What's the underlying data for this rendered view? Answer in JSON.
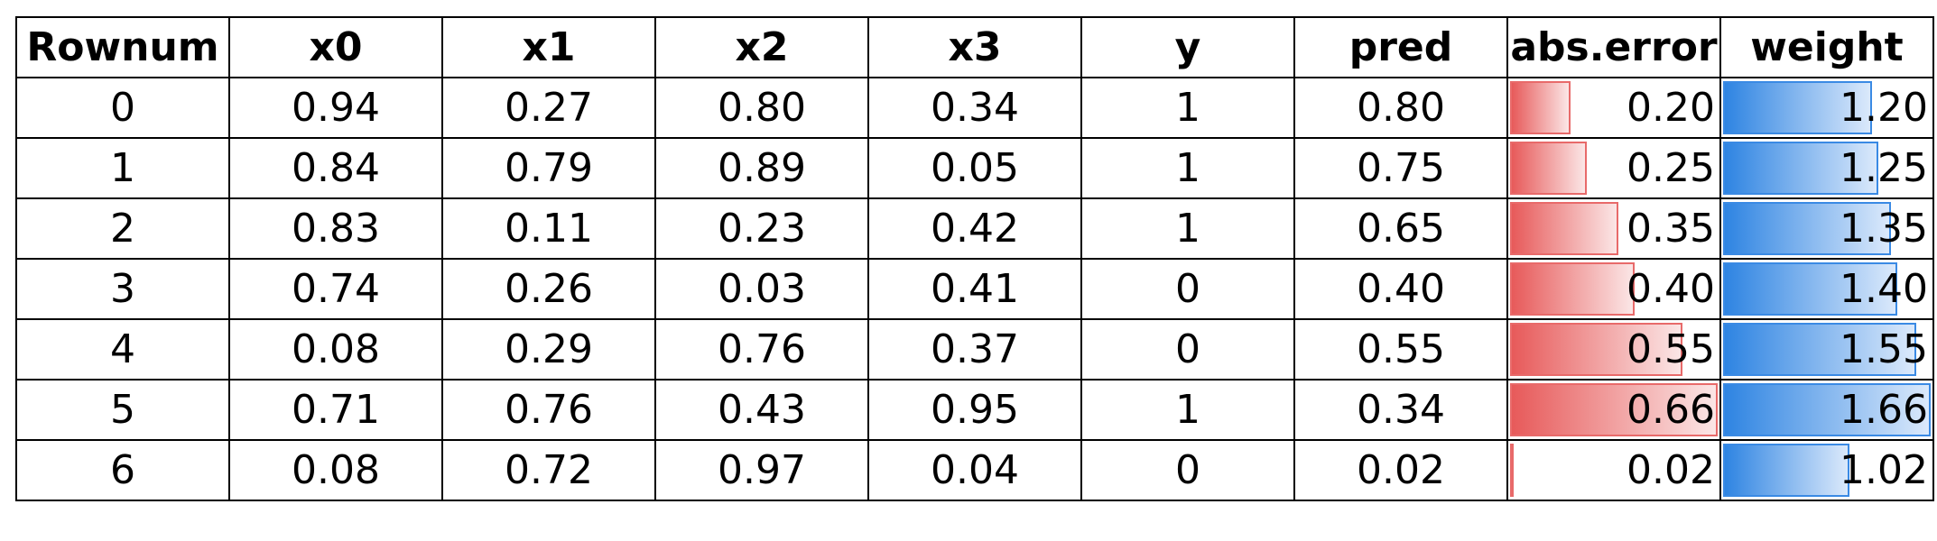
{
  "table": {
    "headers": [
      "Rownum",
      "x0",
      "x1",
      "x2",
      "x3",
      "y",
      "pred",
      "abs.error",
      "weight"
    ],
    "rows": [
      [
        "0",
        "0.94",
        "0.27",
        "0.80",
        "0.34",
        "1",
        "0.80",
        "0.20",
        "1.20"
      ],
      [
        "1",
        "0.84",
        "0.79",
        "0.89",
        "0.05",
        "1",
        "0.75",
        "0.25",
        "1.25"
      ],
      [
        "2",
        "0.83",
        "0.11",
        "0.23",
        "0.42",
        "1",
        "0.65",
        "0.35",
        "1.35"
      ],
      [
        "3",
        "0.74",
        "0.26",
        "0.03",
        "0.41",
        "0",
        "0.40",
        "0.40",
        "1.40"
      ],
      [
        "4",
        "0.08",
        "0.29",
        "0.76",
        "0.37",
        "0",
        "0.55",
        "0.55",
        "1.55"
      ],
      [
        "5",
        "0.71",
        "0.76",
        "0.43",
        "0.95",
        "1",
        "0.34",
        "0.66",
        "1.66"
      ],
      [
        "6",
        "0.08",
        "0.72",
        "0.97",
        "0.04",
        "0",
        "0.02",
        "0.02",
        "1.02"
      ]
    ],
    "bar_columns": {
      "abs.error": {
        "max": 0.66,
        "color": "red"
      },
      "weight": {
        "max": 1.66,
        "color": "blue"
      }
    },
    "colors": {
      "error_bar": "#e75a5a",
      "weight_bar": "#2e84e2",
      "border": "#000000"
    }
  }
}
